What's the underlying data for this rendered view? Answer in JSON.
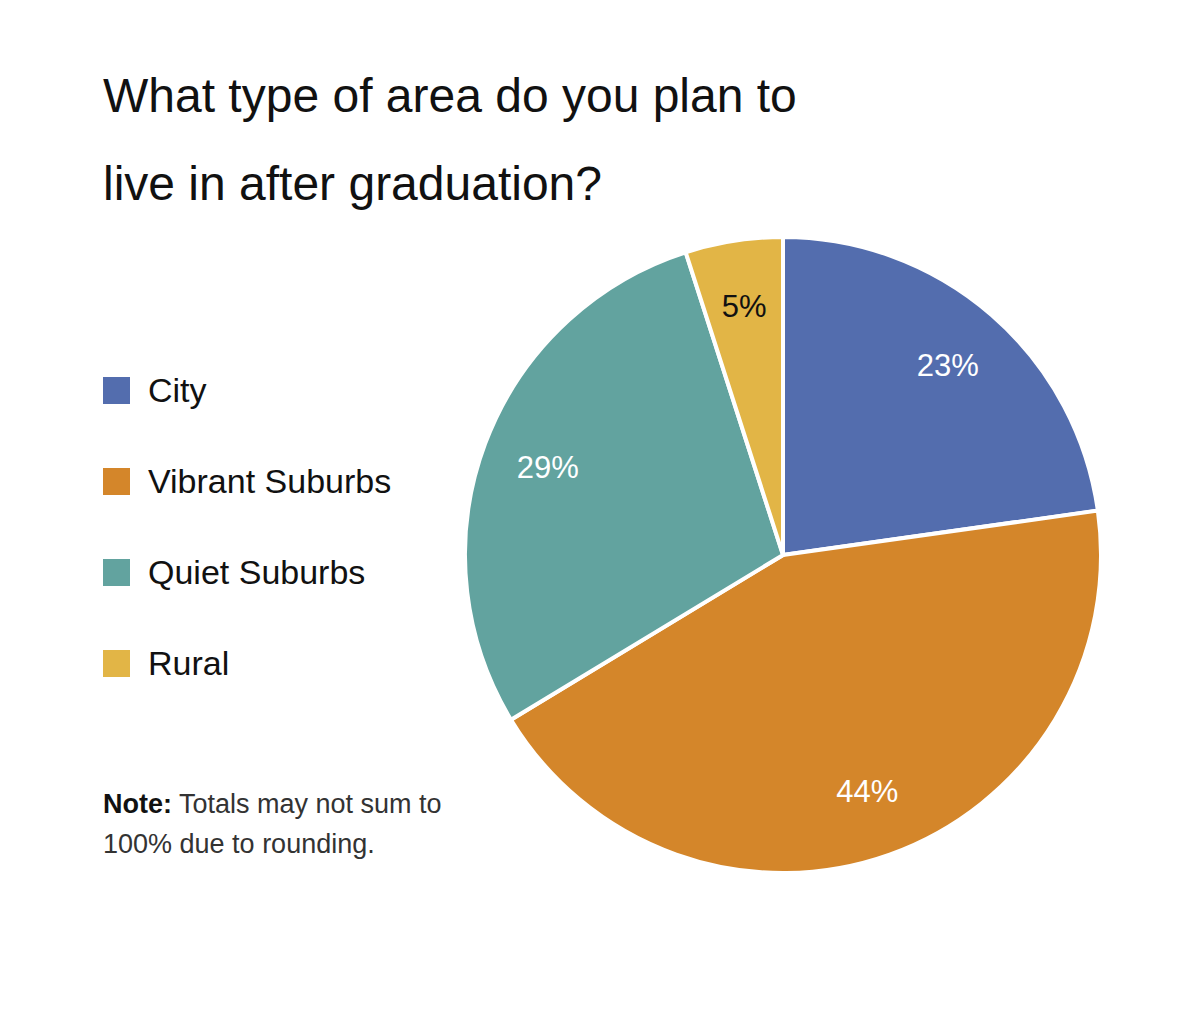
{
  "chart_data": {
    "type": "pie",
    "title": "What type of area do you plan to live in after graduation?",
    "categories": [
      "City",
      "Vibrant Suburbs",
      "Quiet Suburbs",
      "Rural"
    ],
    "values": [
      23,
      44,
      29,
      5
    ],
    "value_labels": [
      "23%",
      "44%",
      "29%",
      "5%"
    ],
    "colors": [
      "#536dae",
      "#d4862a",
      "#62a39f",
      "#e2b546"
    ],
    "data_labels": true,
    "legend": "left",
    "annotations": [
      {
        "label": "Note:",
        "text": "Totals may not sum to 100% due to rounding."
      }
    ]
  }
}
